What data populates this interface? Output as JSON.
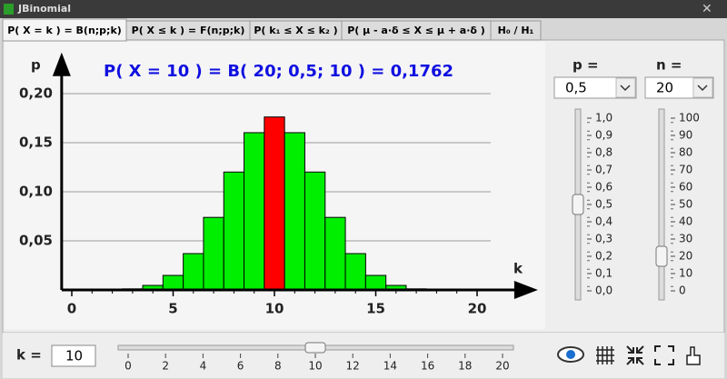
{
  "window": {
    "title": "JBinomial"
  },
  "tabs": [
    "P( X = k ) = B(n;p;k)",
    "P( X ≤ k ) = F(n;p;k)",
    "P( k₁ ≤ X ≤ k₂ )",
    "P( μ - a·δ ≤ X ≤ μ + a·δ )",
    "H₀ / H₁"
  ],
  "chart_data": {
    "type": "bar",
    "title": "P( X = 10 ) = B( 20; 0,5; 10 ) = 0,1762",
    "x_label": "k",
    "y_label": "p",
    "x": [
      0,
      1,
      2,
      3,
      4,
      5,
      6,
      7,
      8,
      9,
      10,
      11,
      12,
      13,
      14,
      15,
      16,
      17,
      18,
      19,
      20
    ],
    "values": [
      0,
      0,
      0.0002,
      0.0011,
      0.0046,
      0.0148,
      0.037,
      0.0739,
      0.1201,
      0.1602,
      0.1762,
      0.1602,
      0.1201,
      0.0739,
      0.037,
      0.0148,
      0.0046,
      0.0011,
      0.0002,
      0,
      0
    ],
    "color": "#00ee00",
    "highlight_color": "#ff0000",
    "highlight_index": 10,
    "xlim": [
      -0.5,
      23
    ],
    "xticks": [
      0,
      5,
      10,
      15,
      20
    ],
    "ylim": [
      0,
      0.24
    ],
    "yticks": [
      {
        "value": 0.05,
        "label": "0,05"
      },
      {
        "value": 0.1,
        "label": "0,10"
      },
      {
        "value": 0.15,
        "label": "0,15"
      },
      {
        "value": 0.2,
        "label": "0,20"
      }
    ],
    "grid": true
  },
  "controls": {
    "p": {
      "label": "p =",
      "value": 0.5,
      "value_label": "0,5",
      "lim": [
        0,
        1
      ],
      "ticks": [
        {
          "value": 0,
          "label": "0,0"
        },
        {
          "value": 0.1,
          "label": "0,1"
        },
        {
          "value": 0.2,
          "label": "0,2"
        },
        {
          "value": 0.3,
          "label": "0,3"
        },
        {
          "value": 0.4,
          "label": "0,4"
        },
        {
          "value": 0.5,
          "label": "0,5"
        },
        {
          "value": 0.6,
          "label": "0,6"
        },
        {
          "value": 0.7,
          "label": "0,7"
        },
        {
          "value": 0.8,
          "label": "0,8"
        },
        {
          "value": 0.9,
          "label": "0,9"
        },
        {
          "value": 1,
          "label": "1,0"
        }
      ]
    },
    "n": {
      "label": "n =",
      "value": 20,
      "lim": [
        0,
        100
      ],
      "ticks": [
        0,
        10,
        20,
        30,
        40,
        50,
        60,
        70,
        80,
        90,
        100
      ]
    },
    "k": {
      "label": "k =",
      "value": 10,
      "lim": [
        0,
        20
      ],
      "ticks": [
        0,
        2,
        4,
        6,
        8,
        10,
        12,
        14,
        16,
        18,
        20
      ]
    }
  }
}
